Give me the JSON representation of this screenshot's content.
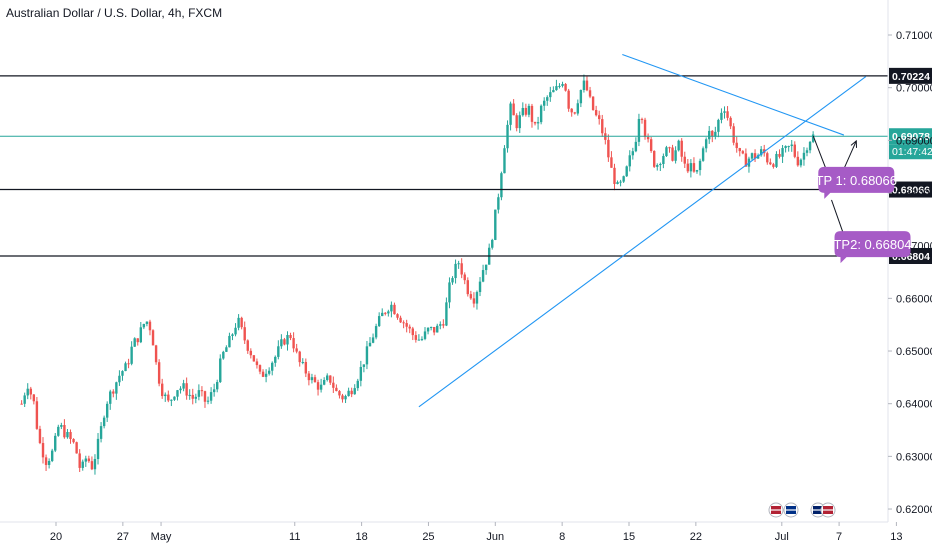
{
  "header": {
    "title": "Australian Dollar / U.S. Dollar, 4h, FXCM"
  },
  "colors": {
    "up": "#26a69a",
    "down": "#ef5350",
    "level": "#131722",
    "trend": "#2196f3",
    "tp": "#a65bc6",
    "price_line": "#26a69a"
  },
  "chart_data": {
    "type": "candlestick",
    "symbol": "AUDUSD",
    "timeframe": "4h",
    "ylim": [
      0.6175,
      0.714
    ],
    "y_ticks": [
      0.71,
      0.7,
      0.69,
      0.68,
      0.67,
      0.66,
      0.65,
      0.64,
      0.63,
      0.62
    ],
    "y_tick_labels": [
      "0.71000",
      "0.70000",
      "0.69000",
      "0.68000",
      "0.67000",
      "0.66000",
      "0.65000",
      "0.64000",
      "0.63000",
      "0.62000"
    ],
    "x_ticks": [
      {
        "label": "20",
        "day": 0
      },
      {
        "label": "27",
        "day": 7
      },
      {
        "label": "May",
        "day": 11
      },
      {
        "label": "11",
        "day": 25
      },
      {
        "label": "18",
        "day": 32
      },
      {
        "label": "25",
        "day": 39
      },
      {
        "label": "Jun",
        "day": 46
      },
      {
        "label": "8",
        "day": 53
      },
      {
        "label": "15",
        "day": 60
      },
      {
        "label": "22",
        "day": 67
      },
      {
        "label": "Jul",
        "day": 76
      },
      {
        "label": "7",
        "day": 82
      },
      {
        "label": "13",
        "day": 88
      }
    ],
    "series_close": [
      [
        -3.6,
        0.64
      ],
      [
        -3,
        0.644
      ],
      [
        -2.3,
        0.64
      ],
      [
        -1.8,
        0.633
      ],
      [
        -1,
        0.629
      ],
      [
        -0.3,
        0.631
      ],
      [
        0.3,
        0.636
      ],
      [
        1.1,
        0.634
      ],
      [
        2,
        0.632
      ],
      [
        2.6,
        0.627
      ],
      [
        3.2,
        0.63
      ],
      [
        3.8,
        0.628
      ],
      [
        4.5,
        0.633
      ],
      [
        5.2,
        0.64
      ],
      [
        6,
        0.643
      ],
      [
        6.8,
        0.646
      ],
      [
        7.4,
        0.647
      ],
      [
        8,
        0.651
      ],
      [
        8.7,
        0.653
      ],
      [
        9.4,
        0.656
      ],
      [
        10,
        0.654
      ],
      [
        10.6,
        0.646
      ],
      [
        11.2,
        0.642
      ],
      [
        11.8,
        0.64
      ],
      [
        12.6,
        0.643
      ],
      [
        13.4,
        0.643
      ],
      [
        14.3,
        0.641
      ],
      [
        15,
        0.642
      ],
      [
        15.8,
        0.64
      ],
      [
        16.6,
        0.643
      ],
      [
        17.4,
        0.649
      ],
      [
        18.2,
        0.652
      ],
      [
        19,
        0.656
      ],
      [
        19.8,
        0.652
      ],
      [
        20.6,
        0.649
      ],
      [
        21.4,
        0.645
      ],
      [
        22.2,
        0.647
      ],
      [
        23,
        0.649
      ],
      [
        23.8,
        0.652
      ],
      [
        24.6,
        0.653
      ],
      [
        25.4,
        0.648
      ],
      [
        26.2,
        0.646
      ],
      [
        27,
        0.644
      ],
      [
        27.8,
        0.643
      ],
      [
        28.6,
        0.645
      ],
      [
        29.4,
        0.642
      ],
      [
        30.2,
        0.641
      ],
      [
        31,
        0.643
      ],
      [
        31.8,
        0.646
      ],
      [
        32.6,
        0.65
      ],
      [
        33.4,
        0.654
      ],
      [
        34.2,
        0.657
      ],
      [
        35,
        0.659
      ],
      [
        35.8,
        0.657
      ],
      [
        36.6,
        0.655
      ],
      [
        37.4,
        0.653
      ],
      [
        38.2,
        0.652
      ],
      [
        39,
        0.654
      ],
      [
        39.8,
        0.654
      ],
      [
        40.6,
        0.656
      ],
      [
        41.4,
        0.664
      ],
      [
        42.2,
        0.667
      ],
      [
        43,
        0.662
      ],
      [
        43.8,
        0.66
      ],
      [
        44.6,
        0.665
      ],
      [
        45.4,
        0.669
      ],
      [
        46.2,
        0.678
      ],
      [
        46.6,
        0.684
      ],
      [
        47,
        0.69
      ],
      [
        47.6,
        0.696
      ],
      [
        48.2,
        0.693
      ],
      [
        48.8,
        0.695
      ],
      [
        49.5,
        0.696
      ],
      [
        50.2,
        0.692
      ],
      [
        50.8,
        0.696
      ],
      [
        51.4,
        0.698
      ],
      [
        52,
        0.699
      ],
      [
        52.6,
        0.7
      ],
      [
        53.2,
        0.702
      ],
      [
        53.6,
        0.697
      ],
      [
        54.2,
        0.695
      ],
      [
        54.8,
        0.699
      ],
      [
        55.4,
        0.701
      ],
      [
        55.8,
        0.698
      ],
      [
        56.4,
        0.695
      ],
      [
        57,
        0.693
      ],
      [
        57.6,
        0.689
      ],
      [
        58.2,
        0.684
      ],
      [
        58.8,
        0.681
      ],
      [
        59.4,
        0.682
      ],
      [
        60,
        0.686
      ],
      [
        60.6,
        0.689
      ],
      [
        61.2,
        0.697
      ],
      [
        61.6,
        0.692
      ],
      [
        62.2,
        0.688
      ],
      [
        62.8,
        0.685
      ],
      [
        63.4,
        0.687
      ],
      [
        64,
        0.688
      ],
      [
        64.6,
        0.687
      ],
      [
        65.2,
        0.689
      ],
      [
        65.8,
        0.685
      ],
      [
        66.4,
        0.685
      ],
      [
        67,
        0.683
      ],
      [
        67.6,
        0.687
      ],
      [
        68.2,
        0.692
      ],
      [
        68.8,
        0.69
      ],
      [
        69.4,
        0.694
      ],
      [
        69.9,
        0.697
      ],
      [
        70.4,
        0.694
      ],
      [
        71,
        0.69
      ],
      [
        71.6,
        0.687
      ],
      [
        72.2,
        0.686
      ],
      [
        72.8,
        0.687
      ],
      [
        73.4,
        0.687
      ],
      [
        74,
        0.688
      ],
      [
        74.6,
        0.686
      ],
      [
        75.2,
        0.686
      ],
      [
        75.8,
        0.687
      ],
      [
        76.4,
        0.688
      ],
      [
        77,
        0.689
      ],
      [
        77.6,
        0.686
      ],
      [
        78.2,
        0.687
      ],
      [
        78.8,
        0.69
      ],
      [
        79.3,
        0.6908
      ]
    ],
    "levels": [
      {
        "price": 0.70224,
        "label": "0.70224"
      },
      {
        "price": 0.68066,
        "label": "0.68066"
      },
      {
        "price": 0.66804,
        "label": "0.66804"
      }
    ],
    "current_price": {
      "price": 0.69078,
      "label": "0.69078",
      "timer": "01:47:42"
    },
    "trendlines": [
      {
        "from": [
          38.0,
          0.6394
        ],
        "to": [
          84.8,
          0.7021
        ]
      },
      {
        "from": [
          59.3,
          0.7063
        ],
        "to": [
          82.5,
          0.691
        ]
      }
    ],
    "projection": [
      [
        79.3,
        0.6908
      ],
      [
        81.5,
        0.6805
      ],
      [
        83.8,
        0.6899
      ]
    ],
    "projection2": [
      [
        81.2,
        0.6787
      ],
      [
        83.0,
        0.6694
      ]
    ],
    "callouts": [
      {
        "text": "TP 1: 0.68066",
        "price": 0.6825,
        "day": 83.8
      },
      {
        "text": "TP2: 0.66804",
        "price": 0.6703,
        "day": 85.5
      }
    ]
  }
}
